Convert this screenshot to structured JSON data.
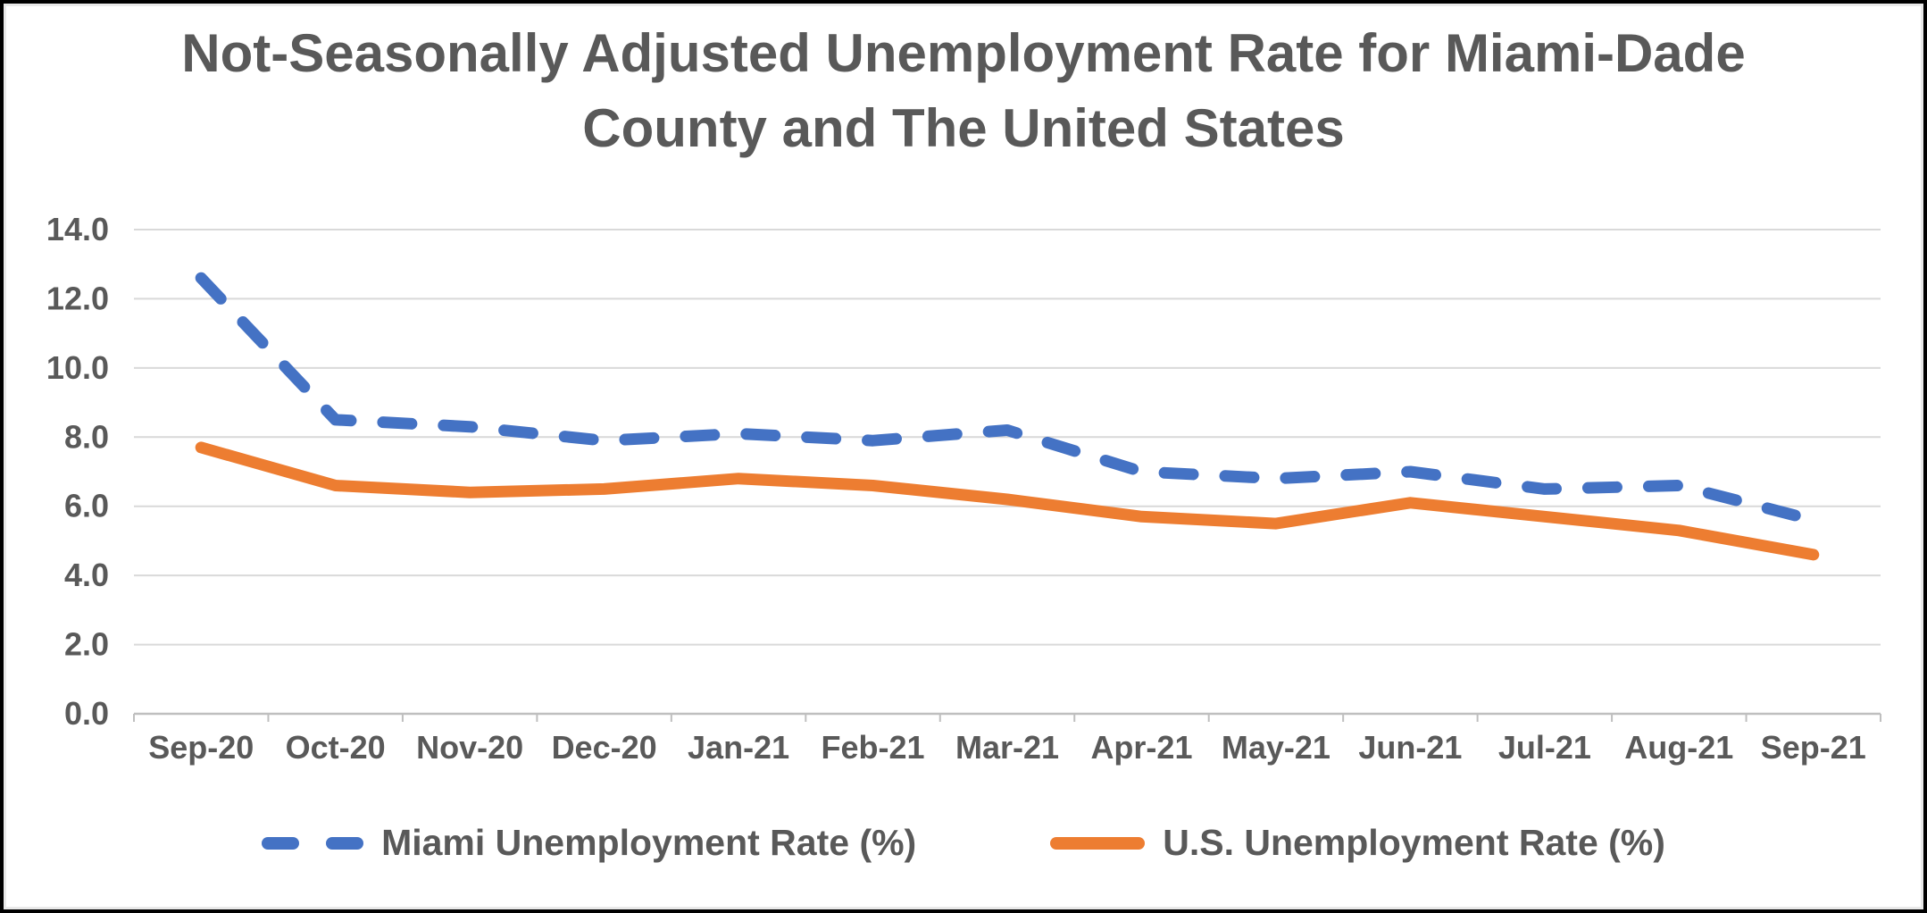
{
  "title": {
    "full": "Not-Seasonally Adjusted Unemployment Rate for Miami-Dade County and The United States",
    "lines": [
      "Not-Seasonally Adjusted Unemployment Rate for Miami-Dade",
      "County and The United States"
    ]
  },
  "chart_data": {
    "type": "line",
    "title": "Not-Seasonally Adjusted Unemployment Rate for Miami-Dade County and The United States",
    "categories": [
      "Sep-20",
      "Oct-20",
      "Nov-20",
      "Dec-20",
      "Jan-21",
      "Feb-21",
      "Mar-21",
      "Apr-21",
      "May-21",
      "Jun-21",
      "Jul-21",
      "Aug-21",
      "Sep-21"
    ],
    "series": [
      {
        "name": "Miami Unemployment Rate (%)",
        "color": "#4472C4",
        "style": "dashed",
        "values": [
          12.6,
          8.5,
          8.3,
          7.9,
          8.1,
          7.9,
          8.2,
          7.0,
          6.8,
          7.0,
          6.5,
          6.6,
          5.6
        ]
      },
      {
        "name": "U.S. Unemployment Rate (%)",
        "color": "#ED7D31",
        "style": "solid",
        "values": [
          7.7,
          6.6,
          6.4,
          6.5,
          6.8,
          6.6,
          6.2,
          5.7,
          5.5,
          6.1,
          5.7,
          5.3,
          4.6
        ]
      }
    ],
    "xlabel": "",
    "ylabel": "",
    "ylim": [
      0,
      14
    ],
    "ytick_step": 2,
    "ytick_decimals": 1,
    "grid": true,
    "legend_position": "bottom",
    "colors": {
      "grid_line": "#D9D9D9",
      "axis_line": "#BFBFBF",
      "text": "#595959",
      "background": "#FFFFFF",
      "border": "#000000"
    }
  }
}
